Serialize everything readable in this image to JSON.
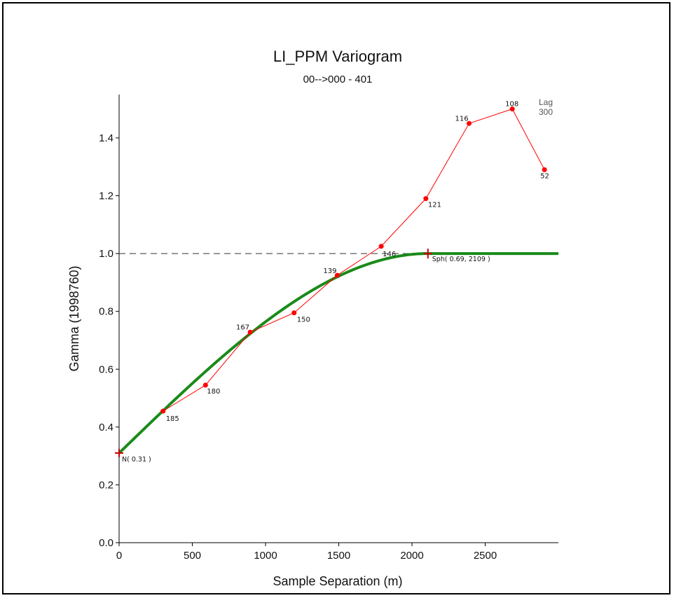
{
  "chart_data": {
    "type": "line",
    "title": "LI_PPM Variogram",
    "subtitle": "00-->000 - 401",
    "xlabel": "Sample Separation (m)",
    "ylabel": "Gamma (1998760)",
    "xlim": [
      0,
      3000
    ],
    "ylim": [
      0,
      1.55
    ],
    "x_ticks": [
      0,
      500,
      1000,
      1500,
      2000,
      2500
    ],
    "y_ticks": [
      "0.0",
      "0.2",
      "0.4",
      "0.6",
      "0.8",
      "1.0",
      "1.2",
      "1.4"
    ],
    "grid": false,
    "legend": "none",
    "sill": 1.0,
    "experimental": {
      "color": "#ff0000",
      "points": [
        {
          "x": 300,
          "y": 0.455,
          "label": "185"
        },
        {
          "x": 590,
          "y": 0.545,
          "label": "180"
        },
        {
          "x": 895,
          "y": 0.728,
          "label": "167"
        },
        {
          "x": 1195,
          "y": 0.795,
          "label": "150"
        },
        {
          "x": 1490,
          "y": 0.925,
          "label": "139"
        },
        {
          "x": 1790,
          "y": 1.025,
          "label": "146"
        },
        {
          "x": 2095,
          "y": 1.19,
          "label": "121"
        },
        {
          "x": 2390,
          "y": 1.45,
          "label": "116"
        },
        {
          "x": 2685,
          "y": 1.5,
          "label": "108"
        },
        {
          "x": 2905,
          "y": 1.29,
          "label": "52"
        }
      ]
    },
    "model": {
      "color": "#1a8a1a",
      "type": "spherical",
      "nugget": 0.31,
      "sill": 1.0,
      "range": 2109,
      "nugget_label": "N( 0.31 )",
      "sph_label": "Sph( 0.69, 2109 )"
    },
    "lag_label": "Lag",
    "lag_value": "300"
  }
}
